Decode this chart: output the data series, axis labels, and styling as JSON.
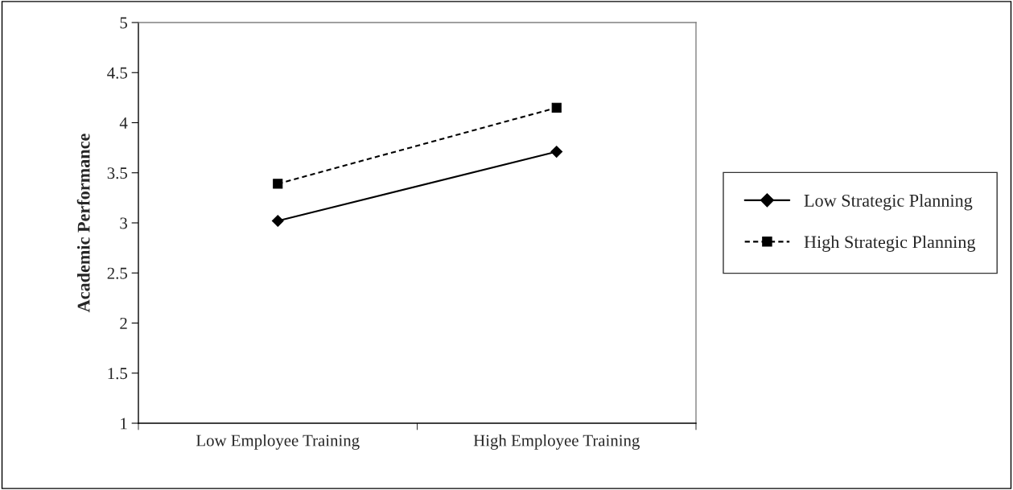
{
  "chart_data": {
    "type": "line",
    "ylabel": "Academic Performance",
    "categories": [
      "Low Employee Training",
      "High Employee Training"
    ],
    "series": [
      {
        "name": "Low Strategic Planning",
        "color": "#000000",
        "values": [
          3.02,
          3.71
        ],
        "marker": "diamond",
        "line_style": "solid"
      },
      {
        "name": "High Strategic Planning",
        "color": "#000000",
        "values": [
          3.39,
          4.15
        ],
        "marker": "square",
        "line_style": "dashed"
      }
    ],
    "ylim": [
      1,
      5
    ],
    "yticks": [
      1,
      1.5,
      2,
      2.5,
      3,
      3.5,
      4,
      4.5,
      5
    ],
    "grid": false,
    "legend": "right"
  }
}
